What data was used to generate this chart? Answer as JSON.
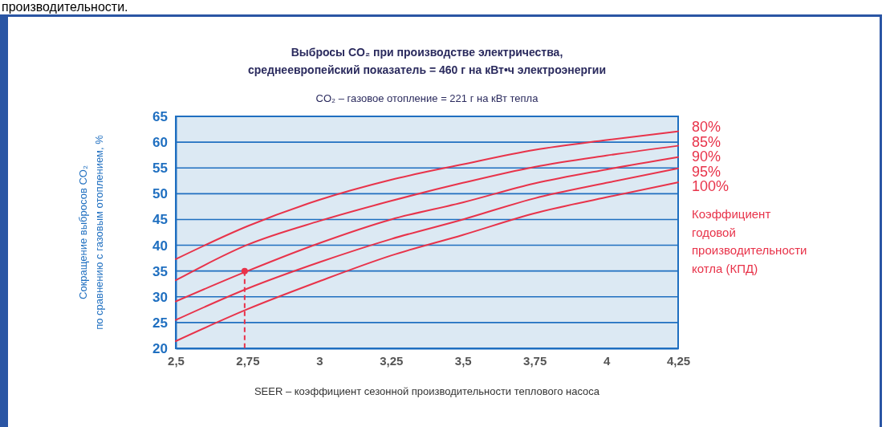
{
  "chart_data": {
    "type": "line",
    "title": "Выбросы CO₂ при производстве электричества,\nсреднеевропейский показатель = 460 г на кВт•ч электроэнергии",
    "subtitle": "CO₂ – газовое отопление = 221 г на кВт тепла",
    "xlabel": "SEER – коэффициент сезонной производительности теплового насоса",
    "ylabel": "Сокращение выбросов CO₂\nпо сравнению с газовым отоплением, %",
    "legend_title": "Коэффициент\nгодовой\nпроизводительности\nкотла (КПД)",
    "annotations": [
      "производительности."
    ],
    "x": [
      2.5,
      2.75,
      3,
      3.25,
      3.5,
      3.75,
      4,
      4.25
    ],
    "series": [
      {
        "name": "80%",
        "color": "#e8334a",
        "values": [
          37.3,
          43.7,
          48.8,
          52.7,
          55.7,
          58.5,
          60.4,
          62.1
        ]
      },
      {
        "name": "85%",
        "color": "#e8334a",
        "values": [
          33.2,
          40.1,
          44.7,
          48.6,
          52.1,
          55.2,
          57.4,
          59.3
        ]
      },
      {
        "name": "90%",
        "color": "#e8334a",
        "values": [
          29.1,
          35,
          40.4,
          45,
          48.3,
          52,
          54.7,
          57.1
        ]
      },
      {
        "name": "95%",
        "color": "#e8334a",
        "values": [
          25.5,
          31.6,
          36.7,
          41.2,
          45,
          49.1,
          52.1,
          54.9
        ]
      },
      {
        "name": "100%",
        "color": "#e8334a",
        "values": [
          21.4,
          27.6,
          33,
          38,
          42,
          46.2,
          49.3,
          52.2
        ]
      },
      {
        "type": "scatter",
        "color": "#e8334a",
        "x": [
          2.74
        ],
        "values": [
          35
        ],
        "marker": "circle"
      }
    ],
    "xlim": [
      2.5,
      4.25
    ],
    "xticks": [
      {
        "value": 2.5,
        "label": "2,5"
      },
      {
        "value": 2.75,
        "label": "2,75"
      },
      3,
      {
        "value": 3.25,
        "label": "3,25"
      },
      {
        "value": 3.5,
        "label": "3,5"
      },
      {
        "value": 3.75,
        "label": "3,75"
      },
      4,
      {
        "value": 4.25,
        "label": "4,25"
      }
    ],
    "ylim": [
      20,
      65
    ],
    "yticks": [
      20,
      25,
      30,
      35,
      40,
      45,
      50,
      55,
      60,
      65
    ],
    "grid": "y",
    "legend": "right",
    "marker": "none",
    "line_style": "solid"
  }
}
